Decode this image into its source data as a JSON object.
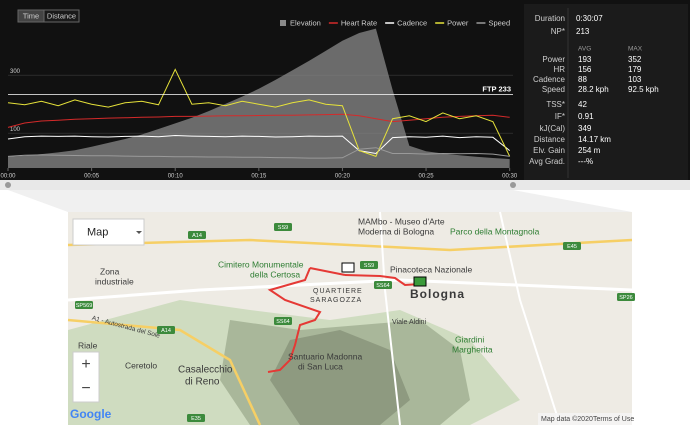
{
  "toggle": [
    "Time",
    "Distance"
  ],
  "chart_data": {
    "type": "line",
    "x": [
      0,
      1,
      2,
      3,
      4,
      5,
      6,
      7,
      8,
      9,
      10,
      11,
      12,
      13,
      14,
      15,
      16,
      17,
      18,
      19,
      20,
      21,
      22,
      23,
      24,
      25,
      26,
      27,
      28,
      29,
      30
    ],
    "xlim": [
      0,
      30.2
    ],
    "xticks": [
      {
        "value": 0,
        "label": "00:00"
      },
      {
        "value": 5,
        "label": "00:05"
      },
      {
        "value": 10,
        "label": "00:10"
      },
      {
        "value": 15,
        "label": "00:15"
      },
      {
        "value": 20,
        "label": "00:20"
      },
      {
        "value": 25,
        "label": "00:25"
      },
      {
        "value": 30,
        "label": "00:30"
      }
    ],
    "ylim": [
      -20,
      480
    ],
    "yticks": [
      100,
      300
    ],
    "y2lim": [
      40,
      300
    ],
    "ftp": 233,
    "ftp_label": "FTP 233",
    "series": [
      {
        "name": "Elevation",
        "color": "#8a8a8a",
        "axis": "y2",
        "values": [
          60,
          62,
          65,
          68,
          72,
          78,
          85,
          92,
          100,
          110,
          120,
          130,
          142,
          155,
          168,
          182,
          198,
          215,
          232,
          250,
          268,
          282,
          290,
          180,
          80,
          70,
          66,
          63,
          60,
          58,
          56
        ]
      },
      {
        "name": "Heart Rate",
        "color": "#d42a2a",
        "values": [
          120,
          135,
          142,
          145,
          148,
          150,
          152,
          153,
          155,
          156,
          158,
          158,
          159,
          160,
          160,
          161,
          162,
          162,
          163,
          164,
          165,
          160,
          150,
          140,
          145,
          150,
          155,
          158,
          160,
          162,
          155
        ]
      },
      {
        "name": "Cadence",
        "color": "#ffffff",
        "values": [
          80,
          88,
          90,
          89,
          90,
          88,
          87,
          89,
          90,
          88,
          92,
          90,
          89,
          88,
          90,
          89,
          87,
          88,
          90,
          89,
          90,
          40,
          30,
          85,
          88,
          86,
          90,
          85,
          88,
          86,
          40
        ]
      },
      {
        "name": "Power",
        "color": "#e6e23a",
        "values": [
          205,
          198,
          210,
          195,
          215,
          200,
          190,
          205,
          210,
          198,
          320,
          200,
          205,
          195,
          210,
          200,
          190,
          205,
          215,
          200,
          195,
          40,
          20,
          150,
          160,
          140,
          170,
          150,
          160,
          140,
          20
        ]
      },
      {
        "name": "Speed",
        "color": "#9a9a9a",
        "values": [
          20,
          24,
          25,
          24,
          23,
          22,
          22,
          21,
          20,
          20,
          19,
          19,
          18,
          18,
          17,
          17,
          16,
          15,
          14,
          14,
          15,
          45,
          50,
          30,
          30,
          28,
          30,
          29,
          30,
          28,
          20
        ]
      }
    ]
  },
  "stats": {
    "top": [
      [
        "Duration",
        "0:30:07"
      ],
      [
        "NP*",
        "213"
      ]
    ],
    "head": [
      "AVG",
      "MAX"
    ],
    "table": [
      [
        "Power",
        "193",
        "352"
      ],
      [
        "HR",
        "156",
        "179"
      ],
      [
        "Cadence",
        "88",
        "103"
      ],
      [
        "Speed",
        "28.2 kph",
        "92.5 kph"
      ]
    ],
    "bottom": [
      [
        "TSS*",
        "42"
      ],
      [
        "IF*",
        "0.91"
      ],
      [
        "kJ(Cal)",
        "349"
      ],
      [
        "Distance",
        "14.17 km"
      ],
      [
        "Elv. Gain",
        "254 m"
      ],
      [
        "Avg Grad.",
        "---%"
      ]
    ]
  },
  "map": {
    "type_select": "Map",
    "labels": [
      "MAMbo - Museo d'Arte",
      "Moderna di Bologna",
      "Parco della Montagnola",
      "Cimitero Monumentale",
      "della Certosa",
      "QUARTIERE",
      "SARAGOZZA",
      "Pinacoteca Nazionale",
      "Bologna",
      "Zona",
      "industriale",
      "Riale",
      "Ceretolo",
      "Casalecchio",
      "di Reno",
      "Santuario Madonna",
      "di San Luca",
      "Giardini",
      "Margherita",
      "Viale Aldini",
      "A1 - Autostrada del Sole"
    ],
    "shields": [
      "A14",
      "SS9",
      "SS9",
      "SS64",
      "SS64",
      "SP569",
      "A14",
      "E45",
      "E35",
      "SP26"
    ],
    "zoom": [
      "+",
      "−"
    ],
    "brand": "Google",
    "footer": [
      "Map data ©2020",
      "Terms of Use"
    ]
  }
}
